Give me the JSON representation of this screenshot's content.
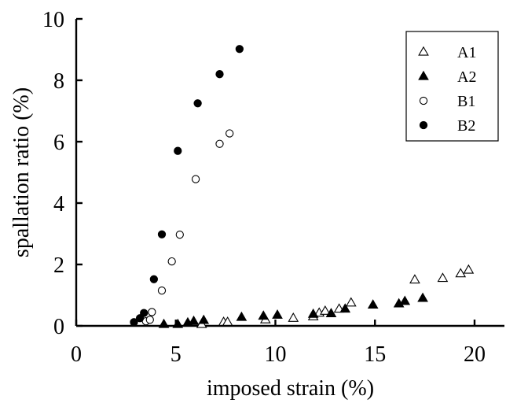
{
  "chart_data": {
    "type": "scatter",
    "xlabel": "imposed strain (%)",
    "ylabel": "spallation ratio (%)",
    "xlim": [
      0,
      21.5
    ],
    "ylim": [
      0,
      10
    ],
    "xticks": [
      0,
      5,
      10,
      15,
      20
    ],
    "yticks": [
      0,
      2,
      4,
      6,
      8,
      10
    ],
    "xtick_labels": [
      "0",
      "5",
      "10",
      "15",
      "20"
    ],
    "ytick_labels": [
      "0",
      "2",
      "4",
      "6",
      "8",
      "10"
    ],
    "grid": false,
    "legend_position": "top-right",
    "series": [
      {
        "name": "A1",
        "marker": "triangle-open",
        "color": "#000000",
        "x": [
          6.3,
          7.4,
          7.6,
          9.5,
          10.9,
          11.9,
          12.2,
          12.5,
          13.2,
          13.8,
          17.0,
          18.4,
          19.3,
          19.7
        ],
        "y": [
          0.05,
          0.12,
          0.12,
          0.2,
          0.25,
          0.3,
          0.42,
          0.48,
          0.55,
          0.75,
          1.5,
          1.55,
          1.7,
          1.82
        ]
      },
      {
        "name": "A2",
        "marker": "triangle-filled",
        "color": "#000000",
        "x": [
          4.4,
          5.1,
          5.6,
          5.9,
          6.4,
          8.3,
          9.4,
          10.1,
          11.9,
          12.8,
          13.5,
          14.9,
          16.2,
          16.5,
          17.4
        ],
        "y": [
          0.05,
          0.05,
          0.1,
          0.15,
          0.18,
          0.28,
          0.32,
          0.35,
          0.38,
          0.4,
          0.55,
          0.68,
          0.72,
          0.8,
          0.9
        ]
      },
      {
        "name": "B1",
        "marker": "circle-open",
        "color": "#000000",
        "x": [
          3.5,
          3.7,
          3.8,
          4.3,
          4.8,
          5.2,
          6.0,
          7.2,
          7.7
        ],
        "y": [
          0.15,
          0.2,
          0.45,
          1.15,
          2.1,
          2.97,
          4.78,
          5.93,
          6.27
        ]
      },
      {
        "name": "B2",
        "marker": "circle-filled",
        "color": "#000000",
        "x": [
          2.9,
          3.2,
          3.4,
          3.9,
          4.3,
          5.1,
          6.1,
          7.2,
          8.2
        ],
        "y": [
          0.12,
          0.25,
          0.42,
          1.52,
          2.98,
          5.7,
          7.25,
          8.2,
          9.02
        ]
      }
    ]
  }
}
